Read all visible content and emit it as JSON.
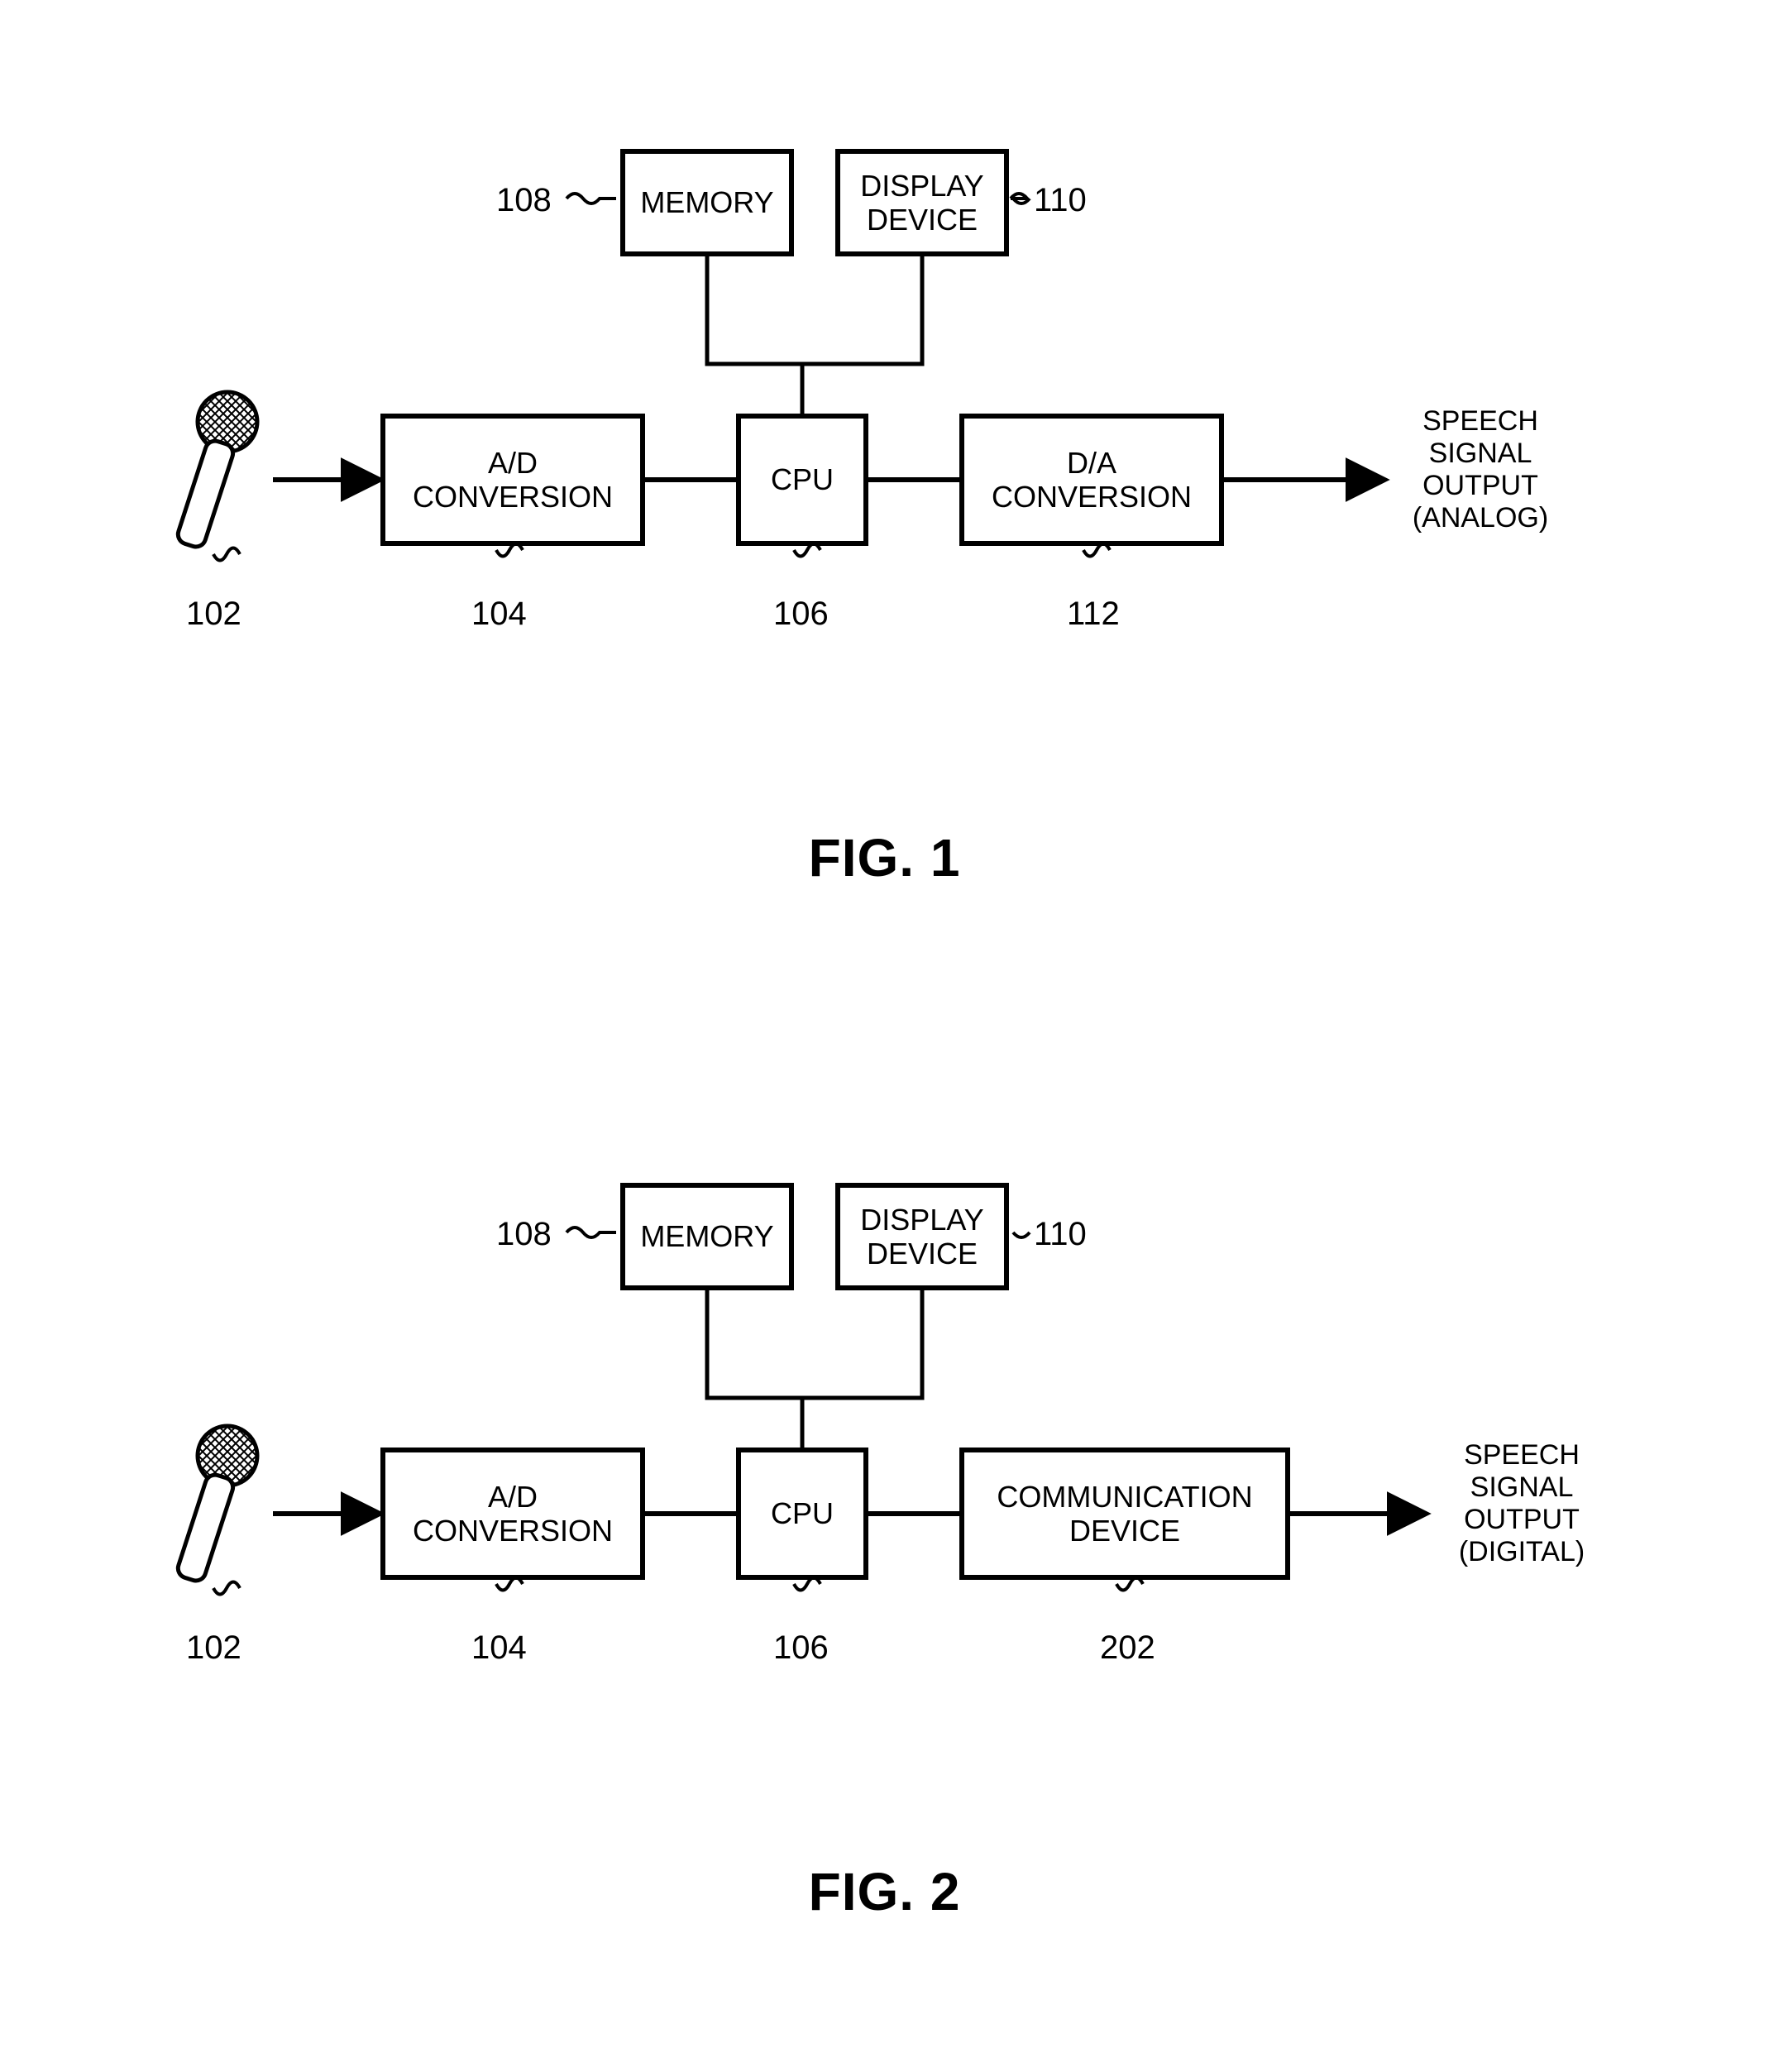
{
  "stroke_color": "#000000",
  "stroke_width": 6,
  "background_color": "#ffffff",
  "text_color": "#000000",
  "box_font_size": 36,
  "ref_font_size": 40,
  "fig_title_font_size": 64,
  "fig1": {
    "title": "FIG. 1",
    "output_text": "SPEECH\nSIGNAL\nOUTPUT\n(ANALOG)",
    "refs": {
      "mic": "102",
      "adc": "104",
      "cpu": "106",
      "memory": "108",
      "display": "110",
      "da": "112"
    },
    "nodes": {
      "memory": {
        "label": "MEMORY"
      },
      "display": {
        "label": "DISPLAY\nDEVICE"
      },
      "adc": {
        "label": "A/D\nCONVERSION"
      },
      "cpu": {
        "label": "CPU"
      },
      "da": {
        "label": "D/A\nCONVERSION"
      }
    }
  },
  "fig2": {
    "title": "FIG. 2",
    "output_text": "SPEECH\nSIGNAL\nOUTPUT\n(DIGITAL)",
    "refs": {
      "mic": "102",
      "adc": "104",
      "cpu": "106",
      "memory": "108",
      "display": "110",
      "comm": "202"
    },
    "nodes": {
      "memory": {
        "label": "MEMORY"
      },
      "display": {
        "label": "DISPLAY\nDEVICE"
      },
      "adc": {
        "label": "A/D\nCONVERSION"
      },
      "cpu": {
        "label": "CPU"
      },
      "comm": {
        "label": "COMMUNICATION\nDEVICE"
      }
    }
  }
}
